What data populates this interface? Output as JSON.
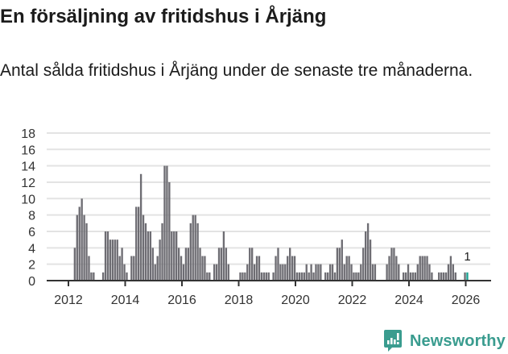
{
  "header": {
    "title": "En försäljning av fritidshus i Årjäng",
    "subtitle": "Antal sålda fritidshus i Årjäng under de senaste tre månaderna."
  },
  "footer": {
    "brand": "Newsworthy",
    "brand_icon": "newsworthy-chart-bubble-icon"
  },
  "colors": {
    "bar": "#6e6d73",
    "highlight_bar": "#1aa393",
    "gridline": "#e3e3e3",
    "axis": "#333333",
    "brand": "#3a9c8f"
  },
  "chart_data": {
    "type": "bar",
    "title": "En försäljning av fritidshus i Årjäng",
    "subtitle": "Antal sålda fritidshus i Årjäng under de senaste tre månaderna.",
    "xlabel": "",
    "ylabel": "",
    "ylim": [
      0,
      18
    ],
    "yticks": [
      0,
      2,
      4,
      6,
      8,
      10,
      12,
      14,
      16,
      18
    ],
    "xticks": [
      "2012",
      "2014",
      "2016",
      "2018",
      "2020",
      "2022",
      "2024",
      "2026"
    ],
    "grid": true,
    "legend": null,
    "highlight_index": 177,
    "annotations": [
      {
        "x": "2026-01",
        "text": "1"
      }
    ],
    "x": [
      "2011-04",
      "2011-05",
      "2011-06",
      "2011-07",
      "2011-08",
      "2011-09",
      "2011-10",
      "2011-11",
      "2011-12",
      "2012-01",
      "2012-02",
      "2012-03",
      "2012-04",
      "2012-05",
      "2012-06",
      "2012-07",
      "2012-08",
      "2012-09",
      "2012-10",
      "2012-11",
      "2012-12",
      "2013-01",
      "2013-02",
      "2013-03",
      "2013-04",
      "2013-05",
      "2013-06",
      "2013-07",
      "2013-08",
      "2013-09",
      "2013-10",
      "2013-11",
      "2013-12",
      "2014-01",
      "2014-02",
      "2014-03",
      "2014-04",
      "2014-05",
      "2014-06",
      "2014-07",
      "2014-08",
      "2014-09",
      "2014-10",
      "2014-11",
      "2014-12",
      "2015-01",
      "2015-02",
      "2015-03",
      "2015-04",
      "2015-05",
      "2015-06",
      "2015-07",
      "2015-08",
      "2015-09",
      "2015-10",
      "2015-11",
      "2015-12",
      "2016-01",
      "2016-02",
      "2016-03",
      "2016-04",
      "2016-05",
      "2016-06",
      "2016-07",
      "2016-08",
      "2016-09",
      "2016-10",
      "2016-11",
      "2016-12",
      "2017-01",
      "2017-02",
      "2017-03",
      "2017-04",
      "2017-05",
      "2017-06",
      "2017-07",
      "2017-08",
      "2017-09",
      "2017-10",
      "2017-11",
      "2017-12",
      "2018-01",
      "2018-02",
      "2018-03",
      "2018-04",
      "2018-05",
      "2018-06",
      "2018-07",
      "2018-08",
      "2018-09",
      "2018-10",
      "2018-11",
      "2018-12",
      "2019-01",
      "2019-02",
      "2019-03",
      "2019-04",
      "2019-05",
      "2019-06",
      "2019-07",
      "2019-08",
      "2019-09",
      "2019-10",
      "2019-11",
      "2019-12",
      "2020-01",
      "2020-02",
      "2020-03",
      "2020-04",
      "2020-05",
      "2020-06",
      "2020-07",
      "2020-08",
      "2020-09",
      "2020-10",
      "2020-11",
      "2020-12",
      "2021-01",
      "2021-02",
      "2021-03",
      "2021-04",
      "2021-05",
      "2021-06",
      "2021-07",
      "2021-08",
      "2021-09",
      "2021-10",
      "2021-11",
      "2021-12",
      "2022-01",
      "2022-02",
      "2022-03",
      "2022-04",
      "2022-05",
      "2022-06",
      "2022-07",
      "2022-08",
      "2022-09",
      "2022-10",
      "2022-11",
      "2022-12",
      "2023-01",
      "2023-02",
      "2023-03",
      "2023-04",
      "2023-05",
      "2023-06",
      "2023-07",
      "2023-08",
      "2023-09",
      "2023-10",
      "2023-11",
      "2023-12",
      "2024-01",
      "2024-02",
      "2024-03",
      "2024-04",
      "2024-05",
      "2024-06",
      "2024-07",
      "2024-08",
      "2024-09",
      "2024-10",
      "2024-11",
      "2024-12",
      "2025-01",
      "2025-02",
      "2025-03",
      "2025-04",
      "2025-05",
      "2025-06",
      "2025-07",
      "2025-08",
      "2025-09",
      "2025-10",
      "2025-11",
      "2025-12",
      "2026-01"
    ],
    "values": [
      0,
      0,
      0,
      0,
      0,
      0,
      0,
      0,
      0,
      0,
      0,
      4,
      8,
      9,
      10,
      8,
      7,
      3,
      1,
      1,
      0,
      0,
      0,
      1,
      6,
      6,
      5,
      5,
      5,
      5,
      3,
      4,
      2,
      1,
      0,
      3,
      3,
      9,
      9,
      13,
      8,
      7,
      6,
      6,
      4,
      2,
      3,
      5,
      7,
      14,
      14,
      12,
      6,
      6,
      6,
      4,
      3,
      2,
      4,
      4,
      7,
      8,
      8,
      7,
      4,
      3,
      3,
      1,
      1,
      0,
      2,
      2,
      4,
      4,
      6,
      4,
      2,
      0,
      0,
      0,
      0,
      1,
      1,
      1,
      2,
      4,
      4,
      2,
      3,
      3,
      1,
      1,
      1,
      1,
      0,
      1,
      3,
      4,
      2,
      2,
      2,
      3,
      4,
      3,
      3,
      1,
      1,
      1,
      1,
      2,
      1,
      2,
      1,
      2,
      2,
      2,
      0,
      1,
      1,
      2,
      2,
      1,
      4,
      4,
      5,
      2,
      3,
      3,
      2,
      1,
      1,
      1,
      2,
      4,
      6,
      7,
      5,
      2,
      2,
      0,
      0,
      0,
      0,
      2,
      3,
      4,
      4,
      3,
      2,
      0,
      1,
      1,
      2,
      1,
      1,
      1,
      2,
      3,
      3,
      3,
      3,
      2,
      1,
      0,
      0,
      1,
      1,
      1,
      1,
      2,
      3,
      2,
      1,
      0,
      0,
      0,
      1,
      1
    ]
  }
}
